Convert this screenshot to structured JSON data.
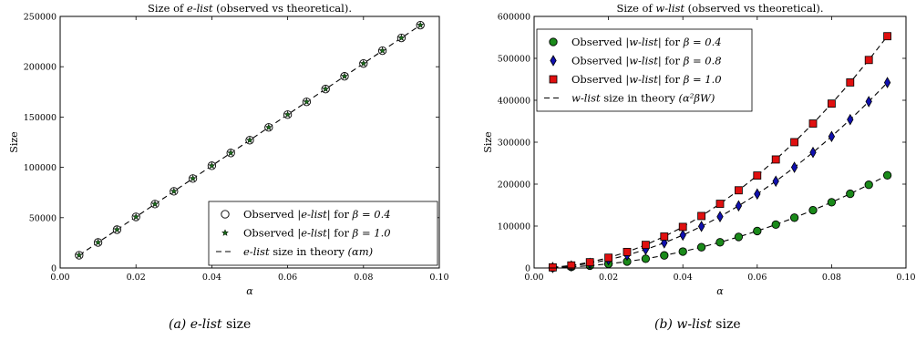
{
  "chart_data": [
    {
      "type": "scatter",
      "title_prefix": "Size of ",
      "title_term": "e-list",
      "title_suffix": " (observed vs theoretical).",
      "xlabel": "α",
      "ylabel": "Size",
      "xlim": [
        0.0,
        0.1
      ],
      "ylim": [
        0,
        250000
      ],
      "xticks": [
        "0.00",
        "0.02",
        "0.04",
        "0.06",
        "0.08",
        "0.10"
      ],
      "yticks": [
        "0",
        "50000",
        "100000",
        "150000",
        "200000",
        "250000"
      ],
      "grid": false,
      "legend_position": "lower-right",
      "x": [
        0.005,
        0.01,
        0.015,
        0.02,
        0.025,
        0.03,
        0.035,
        0.04,
        0.045,
        0.05,
        0.055,
        0.06,
        0.065,
        0.07,
        0.075,
        0.08,
        0.085,
        0.09,
        0.095
      ],
      "series": [
        {
          "label": "Observed |e-list| for β = 0.4",
          "marker": "circle",
          "color": "#ffffff",
          "values": [
            12700,
            25400,
            38100,
            50800,
            63500,
            76200,
            88900,
            101600,
            114300,
            127000,
            139700,
            152400,
            165100,
            177800,
            190500,
            203200,
            215900,
            228600,
            241300
          ]
        },
        {
          "label": "Observed |e-list| for β = 1.0",
          "marker": "star",
          "color": "#1a6b1a",
          "values": [
            12700,
            25400,
            38100,
            50800,
            63500,
            76200,
            88900,
            101600,
            114300,
            127000,
            139700,
            152400,
            165100,
            177800,
            190500,
            203200,
            215900,
            228600,
            241300
          ]
        },
        {
          "label": "e-list size in theory (αm)",
          "marker": "dashed-line",
          "color": "#000000",
          "values": [
            12700,
            25400,
            38100,
            50800,
            63500,
            76200,
            88900,
            101600,
            114300,
            127000,
            139700,
            152400,
            165100,
            177800,
            190500,
            203200,
            215900,
            228600,
            241300
          ]
        }
      ]
    },
    {
      "type": "scatter",
      "title_prefix": "Size of ",
      "title_term": "w-list",
      "title_suffix": " (observed vs theoretical).",
      "xlabel": "α",
      "ylabel": "Size",
      "xlim": [
        0.0,
        0.1
      ],
      "ylim": [
        0,
        600000
      ],
      "xticks": [
        "0.00",
        "0.02",
        "0.04",
        "0.06",
        "0.08",
        "0.10"
      ],
      "yticks": [
        "0",
        "100000",
        "200000",
        "300000",
        "400000",
        "500000",
        "600000"
      ],
      "grid": false,
      "legend_position": "upper-left",
      "x": [
        0.005,
        0.01,
        0.015,
        0.02,
        0.025,
        0.03,
        0.035,
        0.04,
        0.045,
        0.05,
        0.055,
        0.06,
        0.065,
        0.07,
        0.075,
        0.08,
        0.085,
        0.09,
        0.095
      ],
      "series": [
        {
          "label": "Observed |w-list| for β = 0.4",
          "marker": "circle",
          "color": "#1a8a1a",
          "values": [
            600,
            2400,
            5500,
            9800,
            15300,
            22000,
            30000,
            39200,
            49600,
            61300,
            74100,
            88200,
            103500,
            120000,
            137800,
            156800,
            177000,
            198500,
            221100
          ]
        },
        {
          "label": "Observed |w-list| for β = 0.8",
          "marker": "diamond",
          "color": "#1010b0",
          "values": [
            1200,
            4900,
            11000,
            19600,
            30600,
            44100,
            60000,
            78400,
            99200,
            122500,
            148200,
            176400,
            207000,
            240100,
            275600,
            313600,
            354000,
            396900,
            442200
          ]
        },
        {
          "label": "Observed |w-list| for β = 1.0",
          "marker": "square",
          "color": "#e01010",
          "values": [
            1500,
            6100,
            13800,
            24500,
            38300,
            55100,
            75000,
            98000,
            124000,
            153100,
            185300,
            220500,
            258800,
            300100,
            344500,
            392000,
            442500,
            496100,
            552800
          ]
        },
        {
          "label": "w-list size in theory (α²βW)",
          "marker": "dashed-line",
          "color": "#000000",
          "groups": [
            [
              600,
              2400,
              5500,
              9800,
              15300,
              22000,
              30000,
              39200,
              49600,
              61300,
              74100,
              88200,
              103500,
              120000,
              137800,
              156800,
              177000,
              198500,
              221100
            ],
            [
              1200,
              4900,
              11000,
              19600,
              30600,
              44100,
              60000,
              78400,
              99200,
              122500,
              148200,
              176400,
              207000,
              240100,
              275600,
              313600,
              354000,
              396900,
              442200
            ],
            [
              1500,
              6100,
              13800,
              24500,
              38300,
              55100,
              75000,
              98000,
              124000,
              153100,
              185300,
              220500,
              258800,
              300100,
              344500,
              392000,
              442500,
              496100,
              552800
            ]
          ]
        }
      ]
    }
  ],
  "captions": [
    {
      "label": "(a)",
      "term": "e-list",
      "suffix": " size"
    },
    {
      "label": "(b)",
      "term": "w-list",
      "suffix": " size"
    }
  ],
  "legend_a": [
    {
      "pre": "Observed |",
      "term": "e-list",
      "post": "| for ",
      "math": "β = 0.4"
    },
    {
      "pre": "Observed |",
      "term": "e-list",
      "post": "| for ",
      "math": "β = 1.0"
    },
    {
      "pre": "",
      "term": "e-list",
      "post": " size in theory ",
      "math": "(αm)"
    }
  ],
  "legend_b": [
    {
      "pre": "Observed |",
      "term": "w-list",
      "post": "| for ",
      "math": "β = 0.4"
    },
    {
      "pre": "Observed |",
      "term": "w-list",
      "post": "| for ",
      "math": "β = 0.8"
    },
    {
      "pre": "Observed |",
      "term": "w-list",
      "post": "| for ",
      "math": "β = 1.0"
    },
    {
      "pre": "",
      "term": "w-list",
      "post": " size in theory ",
      "math": "(α²βW)"
    }
  ]
}
